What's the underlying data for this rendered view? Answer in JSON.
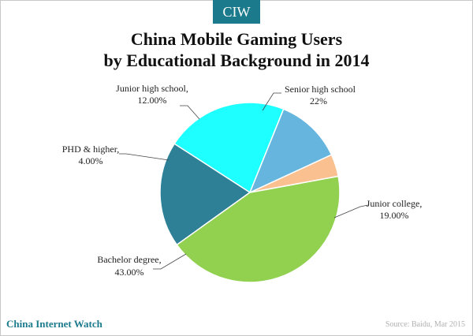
{
  "brand": {
    "badge": "CIW",
    "footer": "China Internet Watch"
  },
  "source": "Source: Baidu, Mar 2015",
  "chart_data": {
    "type": "pie",
    "title_line1": "China Mobile Gaming Users",
    "title_line2": "by Educational Background in 2014",
    "slices": [
      {
        "name": "Senior high  school",
        "value": 22,
        "label_value": "22%",
        "color": "#1effff"
      },
      {
        "name": "Junior college,",
        "value": 19,
        "label_value": "19.00%",
        "color": "#2e8096"
      },
      {
        "name": "Bachelor degree,",
        "value": 43,
        "label_value": "43.00%",
        "color": "#92d050"
      },
      {
        "name": "PHD & higher,",
        "value": 4,
        "label_value": "4.00%",
        "color": "#fac090"
      },
      {
        "name": "Junior high school,",
        "value": 12,
        "label_value": "12.00%",
        "color": "#65b5de"
      }
    ]
  }
}
